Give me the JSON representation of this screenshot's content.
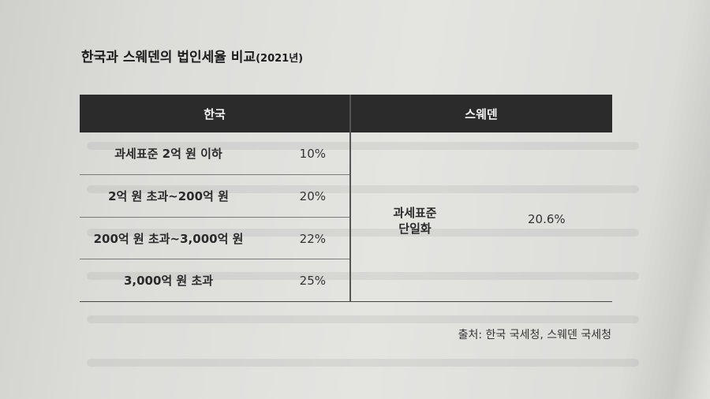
{
  "title": "한국과 스웨덴의 법인세율 비교",
  "title_year": "(2021년)",
  "table": {
    "header_korea": "한국",
    "header_sweden": "스웨덴",
    "korea_rows": [
      {
        "bracket": "과세표준 2억 원 이하",
        "rate": "10%"
      },
      {
        "bracket": "2억 원 초과~200억 원",
        "rate": "20%"
      },
      {
        "bracket": "200억 원 초과~3,000억 원",
        "rate": "22%"
      },
      {
        "bracket": "3,000억 원 초과",
        "rate": "25%"
      }
    ],
    "sweden_bracket_line1": "과세표준",
    "sweden_bracket_line2": "단일화",
    "sweden_rate": "20.6%"
  },
  "source": "출처: 한국 국세청, 스웨덴 국세청"
}
